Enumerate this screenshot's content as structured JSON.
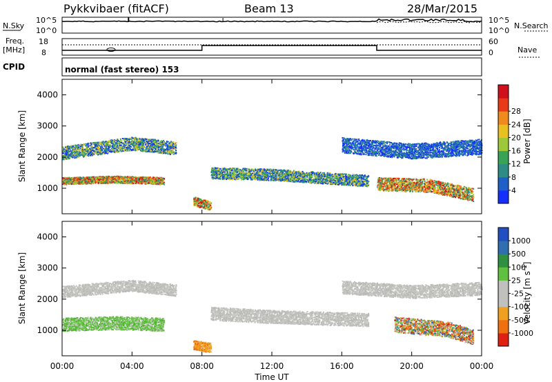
{
  "header": {
    "station": "Pykkvibaer (fitACF)",
    "beam": "Beam 13",
    "date": "28/Mar/2015"
  },
  "top_panels": {
    "nsky_label": "N.Sky",
    "nsky_ticks": [
      "10^5",
      "10^0"
    ],
    "nsearch_label": "N.Search",
    "nsearch_ticks": [
      "10^5",
      "10^0"
    ],
    "freq_label": "Freq.",
    "freq_unit": "[MHz]",
    "freq_ticks": [
      "18",
      "8"
    ],
    "nave_label": "Nave",
    "nave_ticks": [
      "60",
      "0"
    ],
    "cpid_label": "CPID",
    "cpid_text": "normal (fast stereo) 153"
  },
  "chart_data": [
    {
      "type": "heatmap",
      "quantity": "Power",
      "xlabel": "",
      "ylabel": "Slant Range [km]",
      "xlim": [
        "00:00",
        "24:00"
      ],
      "ylim": [
        180,
        4500
      ],
      "y_ticks": [
        "1000",
        "2000",
        "3000",
        "4000"
      ],
      "colorbar_label": "Power [dB]",
      "colorbar_ticks": [
        "4",
        "8",
        "12",
        "16",
        "20",
        "24",
        "28"
      ],
      "colorbar_colors": [
        "#1430ff",
        "#1f5fc8",
        "#2e8b86",
        "#38a354",
        "#9cc83a",
        "#e8c020",
        "#f08a1e",
        "#e83a18",
        "#d0101a"
      ],
      "bands": [
        {
          "t": [
            0,
            4,
            6.5
          ],
          "r": [
            2150,
            2450,
            2300
          ],
          "width": 300,
          "level": "medium"
        },
        {
          "t": [
            0,
            3,
            5.8
          ],
          "r": [
            1250,
            1300,
            1250
          ],
          "width": 160,
          "level": "high"
        },
        {
          "t": [
            7.5,
            8.5
          ],
          "r": [
            600,
            450
          ],
          "width": 200,
          "level": "high"
        },
        {
          "t": [
            8.5,
            12,
            17.5
          ],
          "r": [
            1500,
            1450,
            1250
          ],
          "width": 260,
          "level": "medium"
        },
        {
          "t": [
            16,
            20,
            24
          ],
          "r": [
            2400,
            2200,
            2350
          ],
          "width": 350,
          "level": "low"
        },
        {
          "t": [
            18,
            21,
            23.5
          ],
          "r": [
            1150,
            1100,
            800
          ],
          "width": 300,
          "level": "high"
        }
      ]
    },
    {
      "type": "heatmap",
      "quantity": "Velocity",
      "xlabel": "Time UT",
      "ylabel": "Slant Range [km]",
      "x_ticks": [
        "00:00",
        "04:00",
        "08:00",
        "12:00",
        "16:00",
        "20:00",
        "00:00"
      ],
      "y_ticks": [
        "1000",
        "2000",
        "3000",
        "4000"
      ],
      "colorbar_label": "Velocity [m s-1]",
      "colorbar_ticks": [
        "1000",
        "500",
        "100",
        "25",
        "-25",
        "-100",
        "-500",
        "-1000"
      ],
      "colorbar_colors": [
        "#1f4fc0",
        "#2f6fb0",
        "#2f9040",
        "#60c040",
        "#c0c0bc",
        "#c0c0bc",
        "#f0a020",
        "#f07010",
        "#e02010"
      ],
      "bands": [
        {
          "t": [
            0,
            4,
            6.5
          ],
          "r": [
            2250,
            2450,
            2300
          ],
          "width": 260,
          "level": "neutral"
        },
        {
          "t": [
            0,
            3,
            5.8
          ],
          "r": [
            1200,
            1250,
            1200
          ],
          "width": 300,
          "level": "green"
        },
        {
          "t": [
            7.5,
            8.5
          ],
          "r": [
            550,
            450
          ],
          "width": 220,
          "level": "orange"
        },
        {
          "t": [
            8.5,
            12,
            17.5
          ],
          "r": [
            1550,
            1450,
            1350
          ],
          "width": 300,
          "level": "neutral"
        },
        {
          "t": [
            16,
            20,
            24
          ],
          "r": [
            2400,
            2250,
            2350
          ],
          "width": 300,
          "level": "neutral"
        },
        {
          "t": [
            19,
            22,
            23.5
          ],
          "r": [
            1200,
            1050,
            800
          ],
          "width": 350,
          "level": "mixed"
        }
      ]
    }
  ],
  "x_axis": {
    "label": "Time UT",
    "ticks": [
      "00:00",
      "04:00",
      "08:00",
      "12:00",
      "16:00",
      "20:00",
      "00:00"
    ],
    "tick_hours": [
      0,
      4,
      8,
      12,
      16,
      20,
      24
    ]
  }
}
